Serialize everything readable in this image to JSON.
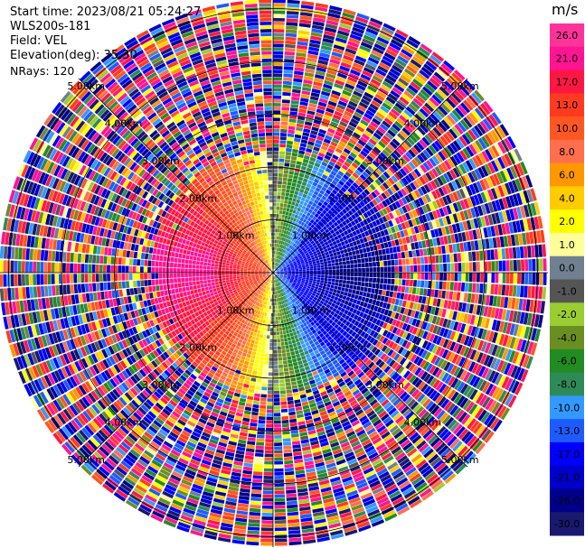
{
  "header": {
    "start_time": "Start time: 2023/08/21 05:24:27",
    "instrument": "WLS200s-181",
    "field": "Field: VEL",
    "elevation": "Elevation(deg): 35.30",
    "nrays": "NRays: 120"
  },
  "colorbar": {
    "unit": "m/s",
    "ticks": [
      "26.0",
      "21.0",
      "17.0",
      "13.0",
      "10.0",
      "8.0",
      "6.0",
      "4.0",
      "2.0",
      "1.0",
      "0.0",
      "-1.0",
      "-2.0",
      "-4.0",
      "-6.0",
      "-8.0",
      "-10.0",
      "-13.0",
      "-17.0",
      "-21.0",
      "-26.0",
      "-30.0"
    ],
    "colors": [
      "#ff3399",
      "#ff1493",
      "#ff1744",
      "#ff3b1f",
      "#ff5722",
      "#ff6f4e",
      "#ff9800",
      "#ffcc00",
      "#ffff00",
      "#ffff99",
      "#708090",
      "#555555",
      "#9acd32",
      "#6b8e23",
      "#228b22",
      "#2e8b57",
      "#3399ff",
      "#1e5bff",
      "#0000ff",
      "#0000cd",
      "#00008b",
      "#191970"
    ]
  },
  "chart_data": {
    "type": "heatmap",
    "description_kind": "radar PPI velocity field",
    "n_rays": 120,
    "range_rings_km": [
      1.0,
      2.0,
      3.0,
      4.0,
      5.0
    ],
    "ring_labels": [
      "1.00km",
      "2.00km",
      "3.00km",
      "4.00km",
      "5.00km"
    ],
    "zero_azimuth_deg": 315,
    "max_velocity": 26.0,
    "min_velocity": -30.0,
    "clean_range_km": 2.3,
    "noise_range_km": [
      2.3,
      5.2
    ]
  }
}
